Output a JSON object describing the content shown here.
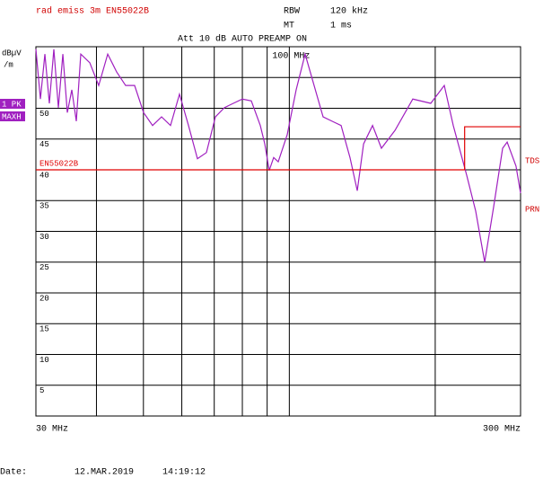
{
  "header": {
    "title": "rad emiss 3m EN55022B",
    "rbw_label": "RBW",
    "rbw_value": "120 kHz",
    "mt_label": "MT",
    "mt_value": "1 ms",
    "settings": "Att 10 dB AUTO PREAMP ON"
  },
  "trace_info": {
    "detector": "1 PK",
    "mode": "MAXH"
  },
  "side_labels": [
    "TDS",
    "PRN"
  ],
  "footer": {
    "date_label": "Date:",
    "date": "12.MAR.2019",
    "time": "14:19:12"
  },
  "chart_data": {
    "type": "line",
    "y_unit": "dBµV",
    "y_unit2": "/m",
    "xscale": "log",
    "xlim": [
      30,
      300
    ],
    "ylim": [
      0,
      60
    ],
    "xticks": [
      {
        "value": 30,
        "label": "30 MHz"
      },
      {
        "value": 100,
        "label": "100 MHz"
      },
      {
        "value": 300,
        "label": "300 MHz"
      }
    ],
    "xgrid": [
      40,
      50,
      60,
      70,
      80,
      90,
      200
    ],
    "yticks": [
      5,
      10,
      15,
      20,
      25,
      30,
      35,
      40,
      45,
      50
    ],
    "ygrid": [
      55
    ],
    "grid": true,
    "series": [
      {
        "color": "#a020c0",
        "x": [
          30.0,
          30.65,
          31.31,
          31.98,
          32.67,
          33.38,
          34.1,
          34.83,
          35.58,
          36.35,
          37.13,
          38.75,
          40.43,
          42.2,
          44.03,
          45.95,
          47.95,
          50.04,
          52.22,
          54.5,
          56.87,
          59.35,
          61.94,
          64.63,
          67.45,
          70.39,
          73.45,
          76.65,
          79.99,
          83.48,
          87.12,
          89.0,
          90.89,
          92.84,
          94.87,
          99.0,
          103.3,
          107.8,
          112.5,
          117.4,
          122.5,
          127.9,
          133.4,
          138.1,
          142.3,
          148.5,
          154.9,
          165.2,
          179.8,
          195.8,
          208.8,
          217.9,
          232.3,
          242.4,
          253.0,
          264.0,
          275.5,
          281.5,
          293.6,
          300
        ],
        "values": [
          59.6,
          51.5,
          58.8,
          50.8,
          59.6,
          50.1,
          58.8,
          49.3,
          53.0,
          47.9,
          58.8,
          57.4,
          53.7,
          58.8,
          55.9,
          53.7,
          53.7,
          49.3,
          47.2,
          48.6,
          47.2,
          52.3,
          47.2,
          41.8,
          42.8,
          48.6,
          50.1,
          50.8,
          51.5,
          51.2,
          47.2,
          44.2,
          39.9,
          42.0,
          41.3,
          45.7,
          53.0,
          58.8,
          53.7,
          48.6,
          47.9,
          47.2,
          42.0,
          36.6,
          44.2,
          47.2,
          43.5,
          46.4,
          51.5,
          50.8,
          53.7,
          47.2,
          39.1,
          33.3,
          25.0,
          34.0,
          43.5,
          44.5,
          40.6,
          36.2
        ]
      },
      {
        "name": "EN55022B",
        "color": "#e00000",
        "x": [
          30,
          230,
          230,
          300
        ],
        "values": [
          40,
          40,
          47,
          47
        ]
      }
    ]
  }
}
